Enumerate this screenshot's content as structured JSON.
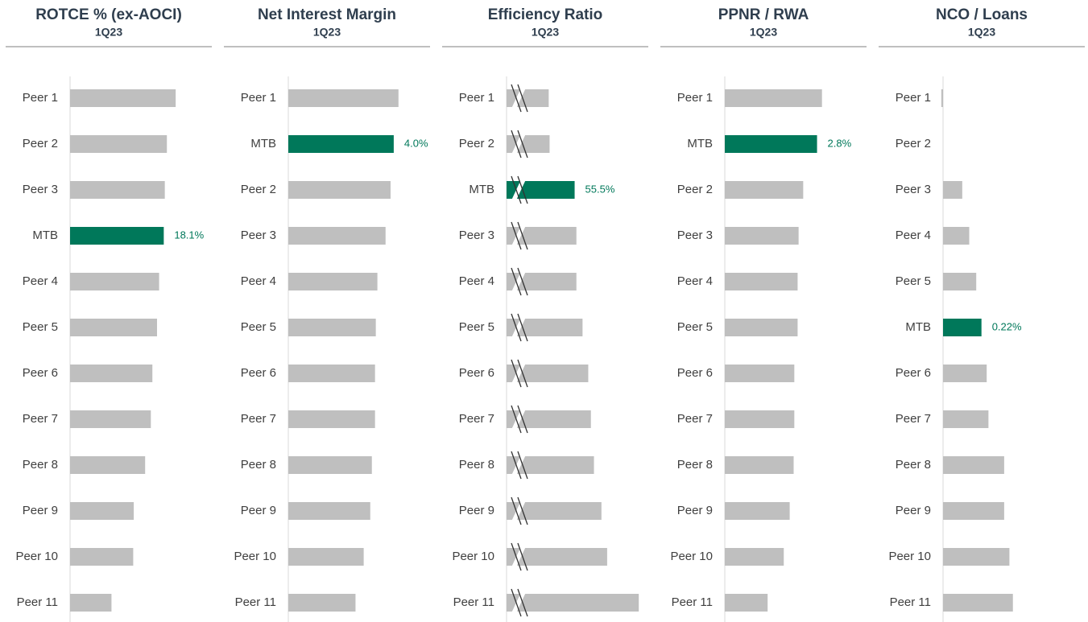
{
  "chart_data": [
    {
      "type": "barh",
      "title": "ROTCE % (ex-AOCI)",
      "subtitle": "1Q23",
      "categories": [
        "Peer 1",
        "Peer 2",
        "Peer 3",
        "MTB",
        "Peer 4",
        "Peer 5",
        "Peer 6",
        "Peer 7",
        "Peer 8",
        "Peer 9",
        "Peer 10",
        "Peer 11"
      ],
      "values": [
        20.4,
        18.7,
        18.3,
        18.1,
        17.2,
        16.8,
        15.9,
        15.6,
        14.5,
        12.3,
        12.2,
        8.0
      ],
      "value_labels": [
        null,
        null,
        null,
        "18.1%",
        null,
        null,
        null,
        null,
        null,
        null,
        null,
        null
      ],
      "colors": [
        "#bfbfbf",
        "#bfbfbf",
        "#bfbfbf",
        "#00785a",
        "#bfbfbf",
        "#bfbfbf",
        "#bfbfbf",
        "#bfbfbf",
        "#bfbfbf",
        "#bfbfbf",
        "#bfbfbf",
        "#bfbfbf"
      ],
      "xlim": [
        0,
        28
      ],
      "axis_break": false
    },
    {
      "type": "barh",
      "title": "Net Interest Margin",
      "subtitle": "1Q23",
      "categories": [
        "Peer 1",
        "MTB",
        "Peer 2",
        "Peer 3",
        "Peer 4",
        "Peer 5",
        "Peer 6",
        "Peer 7",
        "Peer 8",
        "Peer 9",
        "Peer 10",
        "Peer 11"
      ],
      "values": [
        4.18,
        4.0,
        3.88,
        3.69,
        3.38,
        3.32,
        3.29,
        3.29,
        3.17,
        3.11,
        2.86,
        2.55
      ],
      "value_labels": [
        null,
        "4.0%",
        null,
        null,
        null,
        null,
        null,
        null,
        null,
        null,
        null,
        null
      ],
      "colors": [
        "#bfbfbf",
        "#00785a",
        "#bfbfbf",
        "#bfbfbf",
        "#bfbfbf",
        "#bfbfbf",
        "#bfbfbf",
        "#bfbfbf",
        "#bfbfbf",
        "#bfbfbf",
        "#bfbfbf",
        "#bfbfbf"
      ],
      "xlim": [
        0,
        5.5
      ],
      "axis_break": false
    },
    {
      "type": "barh",
      "title": "Efficiency Ratio",
      "subtitle": "1Q23",
      "categories": [
        "Peer 1",
        "Peer 2",
        "MTB",
        "Peer 3",
        "Peer 4",
        "Peer 5",
        "Peer 6",
        "Peer 7",
        "Peer 8",
        "Peer 9",
        "Peer 10",
        "Peer 11"
      ],
      "values": [
        49.6,
        49.8,
        55.5,
        55.9,
        55.9,
        57.3,
        58.6,
        59.2,
        59.9,
        61.6,
        62.9,
        70.1
      ],
      "value_labels": [
        null,
        null,
        "55.5%",
        null,
        null,
        null,
        null,
        null,
        null,
        null,
        null,
        null
      ],
      "colors": [
        "#bfbfbf",
        "#bfbfbf",
        "#00785a",
        "#bfbfbf",
        "#bfbfbf",
        "#bfbfbf",
        "#bfbfbf",
        "#bfbfbf",
        "#bfbfbf",
        "#bfbfbf",
        "#bfbfbf",
        "#bfbfbf"
      ],
      "xlim": [
        40,
        73
      ],
      "axis_break": true
    },
    {
      "type": "barh",
      "title": "PPNR / RWA",
      "subtitle": "1Q23",
      "categories": [
        "Peer 1",
        "MTB",
        "Peer 2",
        "Peer 3",
        "Peer 4",
        "Peer 5",
        "Peer 6",
        "Peer 7",
        "Peer 8",
        "Peer 9",
        "Peer 10",
        "Peer 11"
      ],
      "values": [
        2.95,
        2.8,
        2.38,
        2.24,
        2.21,
        2.21,
        2.11,
        2.11,
        2.09,
        1.97,
        1.79,
        1.3
      ],
      "value_labels": [
        null,
        "2.8%",
        null,
        null,
        null,
        null,
        null,
        null,
        null,
        null,
        null,
        null
      ],
      "colors": [
        "#bfbfbf",
        "#00785a",
        "#bfbfbf",
        "#bfbfbf",
        "#bfbfbf",
        "#bfbfbf",
        "#bfbfbf",
        "#bfbfbf",
        "#bfbfbf",
        "#bfbfbf",
        "#bfbfbf",
        "#bfbfbf"
      ],
      "xlim": [
        0,
        4.4
      ],
      "axis_break": false
    },
    {
      "type": "barh",
      "title": "NCO / Loans",
      "subtitle": "1Q23",
      "categories": [
        "Peer 1",
        "Peer 2",
        "Peer 3",
        "Peer 4",
        "Peer 5",
        "MTB",
        "Peer 6",
        "Peer 7",
        "Peer 8",
        "Peer 9",
        "Peer 10",
        "Peer 11"
      ],
      "values": [
        -0.01,
        0,
        0.11,
        0.15,
        0.19,
        0.22,
        0.25,
        0.26,
        0.35,
        0.35,
        0.38,
        0.4
      ],
      "value_labels": [
        null,
        null,
        null,
        null,
        null,
        "0.22%",
        null,
        null,
        null,
        null,
        null,
        null
      ],
      "colors": [
        "#bfbfbf",
        "#bfbfbf",
        "#bfbfbf",
        "#bfbfbf",
        "#bfbfbf",
        "#00785a",
        "#bfbfbf",
        "#bfbfbf",
        "#bfbfbf",
        "#bfbfbf",
        "#bfbfbf",
        "#bfbfbf"
      ],
      "xlim": [
        0,
        0.83
      ],
      "axis_break": false
    }
  ]
}
